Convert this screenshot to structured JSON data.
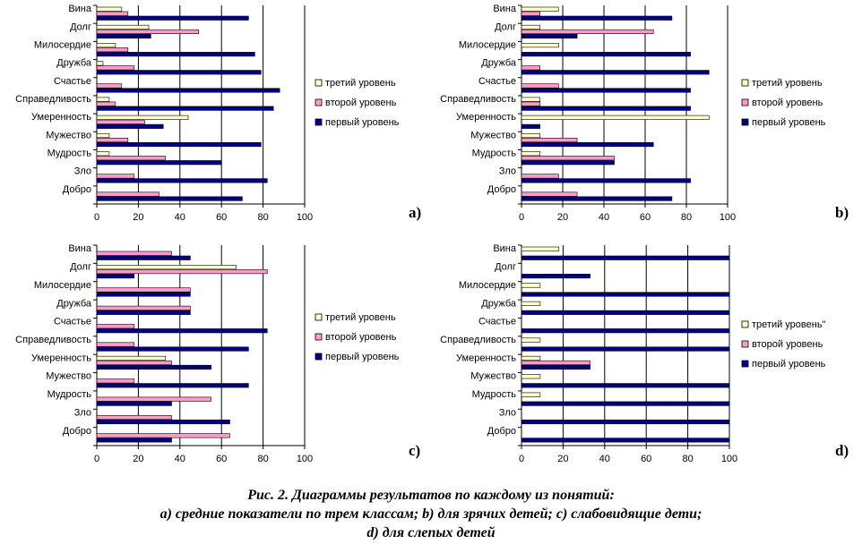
{
  "colors": {
    "third": "#FFFFCC",
    "second": "#FF99CC",
    "first": "#000080",
    "grid": "#000000"
  },
  "chart_data": [
    {
      "id": "a",
      "type": "bar",
      "orientation": "horizontal",
      "panel_label": "a)",
      "categories": [
        "Вина",
        "Долг",
        "Милосердие",
        "Дружба",
        "Счастье",
        "Справедливость",
        "Умеренность",
        "Мужество",
        "Мудрость",
        "Зло",
        "Добро"
      ],
      "series": [
        {
          "name": "третий уровень",
          "key": "third",
          "values": [
            12,
            25,
            9,
            3,
            0,
            6,
            44,
            6,
            6,
            0,
            0
          ]
        },
        {
          "name": "второй уровень",
          "key": "second",
          "values": [
            15,
            49,
            15,
            18,
            12,
            9,
            23,
            15,
            33,
            18,
            30
          ]
        },
        {
          "name": "первый уровень",
          "key": "first",
          "values": [
            73,
            26,
            76,
            79,
            88,
            85,
            32,
            79,
            60,
            82,
            70
          ]
        }
      ],
      "xlim": [
        0,
        100
      ],
      "xticks": [
        "0",
        "20",
        "40",
        "60",
        "80",
        "100"
      ],
      "grid": true,
      "legend_position": "right"
    },
    {
      "id": "b",
      "type": "bar",
      "orientation": "horizontal",
      "panel_label": "b)",
      "categories": [
        "Вина",
        "Долг",
        "Милосердие",
        "Дружба",
        "Счастье",
        "Справедливость",
        "Умеренность",
        "Мужество",
        "Мудрость",
        "Зло",
        "Добро"
      ],
      "series": [
        {
          "name": "третий уровень",
          "key": "third",
          "values": [
            18,
            9,
            18,
            0,
            0,
            9,
            91,
            9,
            9,
            0,
            0
          ]
        },
        {
          "name": "второй уровень",
          "key": "second",
          "values": [
            9,
            64,
            0,
            9,
            18,
            9,
            0,
            27,
            45,
            18,
            27
          ]
        },
        {
          "name": "первый уровень",
          "key": "first",
          "values": [
            73,
            27,
            82,
            91,
            82,
            82,
            9,
            64,
            45,
            82,
            73
          ]
        }
      ],
      "xlim": [
        0,
        100
      ],
      "xticks": [
        "0",
        "20",
        "40",
        "60",
        "80",
        "100"
      ],
      "grid": true,
      "legend_position": "right"
    },
    {
      "id": "c",
      "type": "bar",
      "orientation": "horizontal",
      "panel_label": "c)",
      "categories": [
        "Вина",
        "Долг",
        "Милосердие",
        "Дружба",
        "Счастье",
        "Справедливость",
        "Умеренность",
        "Мужество",
        "Мудрость",
        "Зло",
        "Добро"
      ],
      "series": [
        {
          "name": "третий уровень",
          "key": "third",
          "values": [
            0,
            67,
            0,
            0,
            0,
            0,
            33,
            0,
            0,
            0,
            0
          ]
        },
        {
          "name": "второй уровень",
          "key": "second",
          "values": [
            36,
            82,
            45,
            45,
            18,
            18,
            36,
            18,
            55,
            36,
            64
          ]
        },
        {
          "name": "первый уровень",
          "key": "first",
          "values": [
            45,
            18,
            45,
            45,
            82,
            73,
            55,
            73,
            36,
            64,
            36
          ]
        }
      ],
      "xlim": [
        0,
        100
      ],
      "xticks": [
        "0",
        "20",
        "40",
        "60",
        "80",
        "100"
      ],
      "grid": true,
      "legend_position": "right"
    },
    {
      "id": "d",
      "type": "bar",
      "orientation": "horizontal",
      "panel_label": "d)",
      "categories": [
        "Вина",
        "Долг",
        "Милосердие",
        "Дружба",
        "Счастье",
        "Справедливость",
        "Умеренность",
        "Мужество",
        "Мудрость",
        "Зло",
        "Добро"
      ],
      "series": [
        {
          "name": "третий уровень\"",
          "key": "third",
          "values": [
            18,
            0,
            9,
            9,
            0,
            9,
            9,
            9,
            9,
            0,
            0
          ]
        },
        {
          "name": "второй уровень",
          "key": "second",
          "values": [
            0,
            0,
            0,
            0,
            0,
            0,
            33,
            0,
            0,
            0,
            0
          ]
        },
        {
          "name": "первый уровень",
          "key": "first",
          "values": [
            100,
            33,
            100,
            100,
            100,
            100,
            33,
            100,
            100,
            100,
            100
          ]
        }
      ],
      "xlim": [
        0,
        100
      ],
      "xticks": [
        "0",
        "20",
        "40",
        "60",
        "80",
        "100"
      ],
      "grid": true,
      "legend_position": "right"
    }
  ],
  "caption": {
    "line1": "Рис. 2. Диаграммы результатов по каждому из понятий:",
    "line2": "a) средние показатели по трем классам; b) для зрячих детей; c) слабовидящие дети;",
    "line3": "d) для слепых детей"
  }
}
